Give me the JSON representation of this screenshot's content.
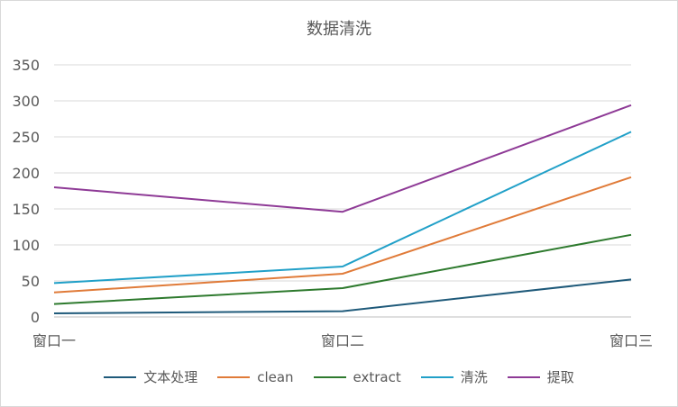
{
  "chart_data": {
    "type": "line",
    "title": "数据清洗",
    "categories": [
      "窗口一",
      "窗口二",
      "窗口三"
    ],
    "ylim": [
      0,
      350
    ],
    "yticks": [
      0,
      50,
      100,
      150,
      200,
      250,
      300,
      350
    ],
    "grid": true,
    "legend_position": "bottom",
    "series": [
      {
        "name": "文本处理",
        "color": "#1f5a7a",
        "values": [
          5,
          8,
          52
        ]
      },
      {
        "name": "clean",
        "color": "#e07b39",
        "values": [
          34,
          60,
          194
        ]
      },
      {
        "name": "extract",
        "color": "#2e7a2e",
        "values": [
          18,
          40,
          114
        ]
      },
      {
        "name": "清洗",
        "color": "#21a0c8",
        "values": [
          47,
          70,
          257
        ]
      },
      {
        "name": "提取",
        "color": "#8e3a96",
        "values": [
          180,
          146,
          294
        ]
      }
    ]
  }
}
